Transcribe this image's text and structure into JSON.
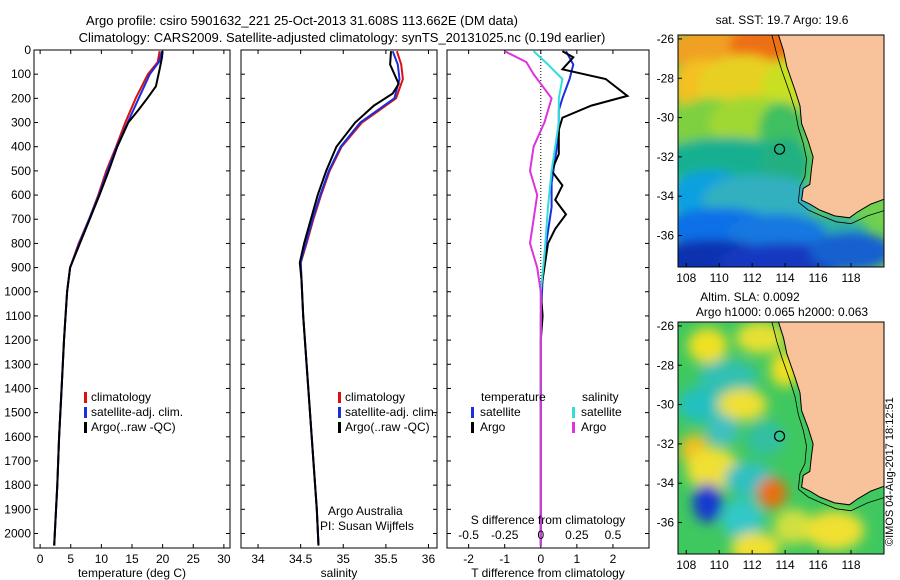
{
  "header": {
    "line1": "Argo profile: csiro 5901632_221 25-Oct-2013 31.608S 113.662E (DM data)",
    "line2": "Climatology: CARS2009. Satellite-adjusted climatology: synTS_20131025.nc (0.19d earlier)"
  },
  "colors": {
    "climatology": "#dd1010",
    "satellite": "#1a2ee0",
    "argo": "#000000",
    "s_satellite": "#33dddd",
    "s_argo": "#dd33dd",
    "land": "#f8c29a"
  },
  "chart_data": [
    {
      "type": "line",
      "xlabel": "temperature (deg C)",
      "ylabel": "",
      "xlim": [
        -1,
        31
      ],
      "ylim": [
        2060,
        0
      ],
      "xticks": [
        0,
        5,
        10,
        15,
        20,
        25,
        30
      ],
      "yticks": [
        0,
        100,
        200,
        300,
        400,
        500,
        600,
        700,
        800,
        900,
        1000,
        1100,
        1200,
        1300,
        1400,
        1500,
        1600,
        1700,
        1800,
        1900,
        2000
      ],
      "legend": [
        "climatology",
        "satellite-adj. clim.",
        "Argo(..raw -QC)"
      ],
      "series": [
        {
          "name": "climatology",
          "color": "#dd1010",
          "points": [
            [
              19.5,
              5
            ],
            [
              19.2,
              50
            ],
            [
              17.6,
              100
            ],
            [
              15.6,
              200
            ],
            [
              13.9,
              300
            ],
            [
              12.4,
              400
            ],
            [
              10.8,
              500
            ],
            [
              9.5,
              600
            ],
            [
              8.0,
              700
            ],
            [
              6.3,
              800
            ],
            [
              4.9,
              900
            ],
            [
              4.4,
              1000
            ],
            [
              3.9,
              1200
            ],
            [
              3.5,
              1400
            ],
            [
              3.1,
              1600
            ],
            [
              2.8,
              1800
            ],
            [
              2.4,
              2000
            ],
            [
              2.3,
              2050
            ]
          ]
        },
        {
          "name": "satellite-adj. clim.",
          "color": "#1a2ee0",
          "points": [
            [
              19.9,
              5
            ],
            [
              19.4,
              50
            ],
            [
              17.9,
              100
            ],
            [
              16.1,
              200
            ],
            [
              14.3,
              300
            ],
            [
              12.5,
              400
            ],
            [
              11.0,
              500
            ],
            [
              9.6,
              600
            ],
            [
              8.0,
              700
            ],
            [
              6.4,
              800
            ],
            [
              4.9,
              900
            ],
            [
              4.4,
              1000
            ],
            [
              3.9,
              1200
            ],
            [
              3.5,
              1400
            ],
            [
              3.1,
              1600
            ],
            [
              2.8,
              1800
            ],
            [
              2.4,
              2000
            ],
            [
              2.3,
              2050
            ]
          ]
        },
        {
          "name": "Argo(..raw -QC)",
          "color": "#000000",
          "points": [
            [
              20.0,
              5
            ],
            [
              19.9,
              30
            ],
            [
              19.5,
              80
            ],
            [
              18.9,
              150
            ],
            [
              17.5,
              200
            ],
            [
              16.0,
              250
            ],
            [
              14.4,
              300
            ],
            [
              12.6,
              400
            ],
            [
              11.2,
              500
            ],
            [
              9.7,
              600
            ],
            [
              8.1,
              700
            ],
            [
              6.5,
              800
            ],
            [
              4.9,
              900
            ],
            [
              4.4,
              1000
            ],
            [
              3.9,
              1200
            ],
            [
              3.5,
              1400
            ],
            [
              3.1,
              1600
            ],
            [
              2.8,
              1800
            ],
            [
              2.4,
              2000
            ],
            [
              2.3,
              2050
            ]
          ]
        }
      ]
    },
    {
      "type": "line",
      "xlabel": "salinity",
      "ylabel": "",
      "xlim": [
        33.8,
        36.1
      ],
      "ylim": [
        2060,
        0
      ],
      "xticks": [
        34,
        34.5,
        35,
        35.5,
        36
      ],
      "legend": [
        "climatology",
        "satellite-adj. clim.",
        "Argo(..raw -QC)"
      ],
      "annotation": [
        "Argo Australia",
        "PI: Susan Wijffels"
      ],
      "series": [
        {
          "name": "climatology",
          "color": "#dd1010",
          "points": [
            [
              35.63,
              5
            ],
            [
              35.68,
              60
            ],
            [
              35.7,
              120
            ],
            [
              35.62,
              200
            ],
            [
              35.42,
              250
            ],
            [
              35.22,
              300
            ],
            [
              34.98,
              400
            ],
            [
              34.84,
              500
            ],
            [
              34.74,
              600
            ],
            [
              34.65,
              700
            ],
            [
              34.57,
              800
            ],
            [
              34.5,
              880
            ],
            [
              34.51,
              950
            ],
            [
              34.53,
              1100
            ],
            [
              34.57,
              1300
            ],
            [
              34.61,
              1500
            ],
            [
              34.65,
              1700
            ],
            [
              34.69,
              1900
            ],
            [
              34.71,
              2050
            ]
          ]
        },
        {
          "name": "satellite-adj. clim.",
          "color": "#1a2ee0",
          "points": [
            [
              35.58,
              5
            ],
            [
              35.64,
              60
            ],
            [
              35.66,
              120
            ],
            [
              35.6,
              200
            ],
            [
              35.4,
              250
            ],
            [
              35.2,
              300
            ],
            [
              34.97,
              400
            ],
            [
              34.83,
              500
            ],
            [
              34.73,
              600
            ],
            [
              34.64,
              700
            ],
            [
              34.56,
              800
            ],
            [
              34.5,
              880
            ],
            [
              34.51,
              950
            ],
            [
              34.53,
              1100
            ],
            [
              34.57,
              1300
            ],
            [
              34.61,
              1500
            ],
            [
              34.65,
              1700
            ],
            [
              34.69,
              1900
            ],
            [
              34.71,
              2050
            ]
          ]
        },
        {
          "name": "Argo(..raw -QC)",
          "color": "#000000",
          "points": [
            [
              35.56,
              5
            ],
            [
              35.55,
              60
            ],
            [
              35.6,
              100
            ],
            [
              35.65,
              140
            ],
            [
              35.58,
              180
            ],
            [
              35.36,
              230
            ],
            [
              35.14,
              300
            ],
            [
              34.92,
              400
            ],
            [
              34.8,
              500
            ],
            [
              34.7,
              600
            ],
            [
              34.62,
              700
            ],
            [
              34.54,
              800
            ],
            [
              34.49,
              880
            ],
            [
              34.51,
              950
            ],
            [
              34.53,
              1100
            ],
            [
              34.57,
              1300
            ],
            [
              34.61,
              1500
            ],
            [
              34.65,
              1700
            ],
            [
              34.69,
              1900
            ],
            [
              34.71,
              2050
            ]
          ]
        }
      ]
    },
    {
      "type": "line",
      "xlabel": "T difference from climatology",
      "top_axis_label": "S difference from climatology",
      "xlim": [
        -2.6,
        3.0
      ],
      "ylim": [
        2060,
        0
      ],
      "xticks": [
        -2,
        -1,
        0,
        1,
        2
      ],
      "top_xticks": [
        "-0.5",
        "-0.25",
        "0",
        "0.25",
        "0.5"
      ],
      "legend_headers": [
        "temperature",
        "salinity"
      ],
      "legend": [
        "satellite",
        "Argo",
        "satellite",
        "Argo"
      ],
      "series": [
        {
          "name": "satellite",
          "color": "#1a2ee0",
          "points": [
            [
              0.7,
              5
            ],
            [
              0.9,
              60
            ],
            [
              0.8,
              120
            ],
            [
              0.6,
              200
            ],
            [
              0.5,
              250
            ],
            [
              0.5,
              350
            ],
            [
              0.4,
              450
            ],
            [
              0.3,
              550
            ],
            [
              0.3,
              650
            ],
            [
              0.2,
              750
            ],
            [
              0.1,
              850
            ],
            [
              0.05,
              950
            ],
            [
              0,
              1100
            ],
            [
              0,
              1500
            ],
            [
              0,
              2050
            ]
          ]
        },
        {
          "name": "Argo",
          "color": "#000000",
          "points": [
            [
              0.6,
              5
            ],
            [
              0.9,
              30
            ],
            [
              0.6,
              80
            ],
            [
              1.8,
              120
            ],
            [
              2.4,
              190
            ],
            [
              1.4,
              230
            ],
            [
              0.6,
              280
            ],
            [
              0.5,
              330
            ],
            [
              0.5,
              430
            ],
            [
              0.3,
              500
            ],
            [
              0.6,
              560
            ],
            [
              0.4,
              620
            ],
            [
              0.7,
              680
            ],
            [
              0.4,
              740
            ],
            [
              0.2,
              800
            ],
            [
              0.1,
              900
            ],
            [
              0,
              1000
            ],
            [
              0.05,
              1100
            ],
            [
              0,
              1200
            ],
            [
              0,
              1500
            ],
            [
              0,
              2050
            ]
          ]
        },
        {
          "name": "satellite",
          "color": "#33dddd",
          "points": [
            [
              -0.2,
              5
            ],
            [
              0.2,
              60
            ],
            [
              0.6,
              120
            ],
            [
              0.5,
              200
            ],
            [
              0.5,
              300
            ],
            [
              0.4,
              400
            ],
            [
              0.3,
              500
            ],
            [
              0.2,
              650
            ],
            [
              0.1,
              850
            ],
            [
              0,
              1000
            ],
            [
              0,
              2050
            ]
          ]
        },
        {
          "name": "Argo",
          "color": "#dd33dd",
          "points": [
            [
              -1.0,
              5
            ],
            [
              -0.4,
              50
            ],
            [
              -0.2,
              100
            ],
            [
              0.3,
              200
            ],
            [
              0.1,
              300
            ],
            [
              -0.2,
              400
            ],
            [
              -0.3,
              500
            ],
            [
              -0.1,
              600
            ],
            [
              -0.2,
              700
            ],
            [
              -0.3,
              800
            ],
            [
              -0.1,
              900
            ],
            [
              0,
              1000
            ],
            [
              0,
              2050
            ]
          ]
        }
      ]
    },
    {
      "type": "heatmap",
      "title": "sat. SST: 19.7  Argo: 19.6",
      "xlim": [
        107.5,
        120
      ],
      "ylim": [
        -37.6,
        -25.8
      ],
      "xticks": [
        108,
        110,
        112,
        114,
        116,
        118
      ],
      "yticks": [
        -26,
        -28,
        -30,
        -32,
        -34,
        -36
      ],
      "marker": [
        113.662,
        -31.608
      ]
    },
    {
      "type": "heatmap",
      "title": "Altim. SLA: 0.0092",
      "subtitle": "Argo h1000: 0.065 h2000: 0.063",
      "xlim": [
        107.5,
        120
      ],
      "ylim": [
        -37.6,
        -25.8
      ],
      "xticks": [
        108,
        110,
        112,
        114,
        116,
        118
      ],
      "yticks": [
        -26,
        -28,
        -30,
        -32,
        -34,
        -36
      ],
      "marker": [
        113.662,
        -31.608
      ]
    }
  ],
  "footer": {
    "credit": "©IMOS 04-Aug-2017 18:12:51"
  }
}
